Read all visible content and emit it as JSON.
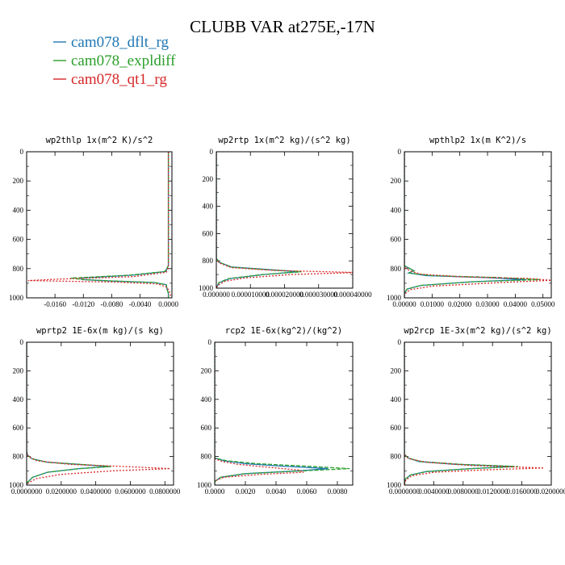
{
  "title": "CLUBB VAR at275E,-17N",
  "legend": [
    {
      "label": "cam078_dflt_rg",
      "color": "#1f77b4"
    },
    {
      "label": "cam078_expldiff",
      "color": "#2ca02c"
    },
    {
      "label": "cam078_qt1_rg",
      "color": "#d62728"
    }
  ],
  "chart_data": [
    {
      "type": "line",
      "title": "wp2thlp  1x(m^2 K)/s^2",
      "xlim": [
        -0.02,
        0.0005
      ],
      "ylim": [
        0,
        1000
      ],
      "yticks": [
        0,
        200,
        400,
        600,
        800,
        1000
      ],
      "ytick_labels": [
        "0",
        "200",
        "400",
        "600",
        "800",
        "1000"
      ],
      "xticks": [
        -0.016,
        -0.012,
        -0.008,
        -0.004,
        0.0
      ],
      "xtick_labels": [
        "-0.0160",
        "-0.0120",
        "-0.0080",
        "-0.0040",
        "0.0000"
      ],
      "series": [
        {
          "name": "cam078_dflt_rg",
          "y": [
            0,
            780,
            820,
            845,
            865,
            875,
            885,
            895,
            910,
            940,
            970,
            1000
          ],
          "x": [
            0.0,
            0.0,
            -0.0004,
            -0.005,
            -0.0125,
            -0.0122,
            -0.008,
            -0.002,
            -0.0003,
            -0.0002,
            0.0,
            0.0
          ]
        },
        {
          "name": "cam078_expldiff",
          "y": [
            0,
            780,
            820,
            845,
            865,
            875,
            885,
            895,
            910,
            940,
            970,
            1000
          ],
          "x": [
            0.0,
            0.0,
            -0.0005,
            -0.0055,
            -0.0138,
            -0.012,
            -0.0075,
            -0.002,
            -0.0003,
            -0.0002,
            0.0,
            0.0
          ]
        },
        {
          "name": "cam078_qt1_rg",
          "y": [
            0,
            790,
            825,
            855,
            872,
            882,
            892,
            905,
            925,
            945,
            975,
            1000
          ],
          "x": [
            0.0,
            0.0,
            -0.0003,
            -0.005,
            -0.0155,
            -0.0198,
            -0.0075,
            -0.0015,
            -0.0003,
            0.0,
            0.0003,
            0.0003
          ]
        }
      ]
    },
    {
      "type": "line",
      "title": "wp2rtp  1x(m^2 kg)/(s^2 kg)",
      "xlim": [
        0.0,
        4e-05
      ],
      "ylim": [
        0,
        1000
      ],
      "yticks": [
        0,
        200,
        400,
        600,
        800,
        1000
      ],
      "ytick_labels": [
        "0",
        "200",
        "400",
        "600",
        "800",
        "1000"
      ],
      "xticks": [
        0.0,
        1e-05,
        2e-05,
        3e-05,
        4e-05
      ],
      "xtick_labels": [
        "0.000000",
        "0.000010000",
        "0.000020000",
        "0.000030000",
        "0.000040000"
      ],
      "series": [
        {
          "name": "cam078_dflt_rg",
          "y": [
            0,
            780,
            810,
            845,
            865,
            880,
            900,
            930,
            960,
            1000
          ],
          "x": [
            0.0,
            0.0,
            8e-07,
            4.5e-06,
            1.6e-05,
            2.4e-05,
            1.4e-05,
            4e-06,
            8e-07,
            0.0
          ]
        },
        {
          "name": "cam078_expldiff",
          "y": [
            0,
            780,
            810,
            845,
            865,
            880,
            900,
            930,
            960,
            1000
          ],
          "x": [
            0.0,
            0.0,
            8e-07,
            4.2e-06,
            1.5e-05,
            2.5e-05,
            1.35e-05,
            3.5e-06,
            7e-07,
            0.0
          ]
        },
        {
          "name": "cam078_qt1_rg",
          "y": [
            0,
            785,
            815,
            850,
            870,
            885,
            900,
            925,
            950,
            980,
            1000
          ],
          "x": [
            0.0,
            0.0,
            8e-07,
            4.5e-06,
            1.7e-05,
            4.1e-05,
            2.2e-05,
            8.5e-06,
            2.5e-06,
            4e-07,
            0.0
          ]
        }
      ]
    },
    {
      "type": "line",
      "title": "wpthlp2  1x(m K^2)/s",
      "xlim": [
        0.0,
        0.053
      ],
      "ylim": [
        0,
        1000
      ],
      "yticks": [
        0,
        200,
        400,
        600,
        800,
        1000
      ],
      "ytick_labels": [
        "0",
        "200",
        "400",
        "600",
        "800",
        "1000"
      ],
      "xticks": [
        0.0,
        0.01,
        0.02,
        0.03,
        0.04,
        0.05
      ],
      "xtick_labels": [
        "0.00000",
        "0.01000",
        "0.02000",
        "0.03000",
        "0.04000",
        "0.05000"
      ],
      "series": [
        {
          "name": "cam078_dflt_rg",
          "y": [
            0,
            780,
            800,
            815,
            830,
            848,
            862,
            875,
            890,
            915,
            940,
            970,
            1000
          ],
          "x": [
            0.0,
            0.0,
            0.002,
            0.0035,
            0.0015,
            0.008,
            0.03,
            0.044,
            0.024,
            0.006,
            0.001,
            0.0,
            0.0
          ]
        },
        {
          "name": "cam078_expldiff",
          "y": [
            0,
            780,
            800,
            815,
            830,
            848,
            862,
            875,
            890,
            915,
            940,
            970,
            1000
          ],
          "x": [
            0.0,
            0.0,
            0.002,
            0.0035,
            0.0015,
            0.01,
            0.035,
            0.049,
            0.025,
            0.006,
            0.001,
            0.0,
            0.0
          ]
        },
        {
          "name": "cam078_qt1_rg",
          "y": [
            0,
            785,
            805,
            822,
            838,
            855,
            868,
            880,
            895,
            920,
            945,
            975,
            1000
          ],
          "x": [
            0.0,
            0.0,
            0.001,
            0.003,
            0.006,
            0.02,
            0.045,
            0.053,
            0.035,
            0.01,
            0.002,
            0.0,
            0.0
          ]
        }
      ]
    },
    {
      "type": "line",
      "title": "wprtp2  1E-6x(m kg)/(s kg)",
      "xlim": [
        0.0,
        0.085
      ],
      "ylim": [
        0,
        1000
      ],
      "yticks": [
        0,
        200,
        400,
        600,
        800,
        1000
      ],
      "ytick_labels": [
        "0",
        "200",
        "400",
        "600",
        "800",
        "1000"
      ],
      "xticks": [
        0.0,
        0.02,
        0.04,
        0.06,
        0.08
      ],
      "xtick_labels": [
        "0.0000000",
        "0.0200000",
        "0.0400000",
        "0.0600000",
        "0.0800000"
      ],
      "series": [
        {
          "name": "cam078_dflt_rg",
          "y": [
            0,
            765,
            790,
            815,
            840,
            855,
            870,
            885,
            910,
            945,
            980,
            1000
          ],
          "x": [
            0.0,
            0.0,
            0.0005,
            0.003,
            0.012,
            0.03,
            0.048,
            0.03,
            0.012,
            0.0035,
            0.0005,
            0.0
          ]
        },
        {
          "name": "cam078_expldiff",
          "y": [
            0,
            765,
            790,
            815,
            840,
            855,
            870,
            885,
            910,
            945,
            980,
            1000
          ],
          "x": [
            0.0,
            0.0,
            0.0005,
            0.003,
            0.012,
            0.031,
            0.049,
            0.031,
            0.012,
            0.0035,
            0.0005,
            0.0
          ]
        },
        {
          "name": "cam078_qt1_rg",
          "y": [
            0,
            770,
            800,
            830,
            855,
            872,
            885,
            900,
            925,
            955,
            985,
            1000
          ],
          "x": [
            0.0,
            0.0,
            0.001,
            0.006,
            0.025,
            0.06,
            0.083,
            0.05,
            0.02,
            0.0055,
            0.001,
            0.0
          ]
        }
      ]
    },
    {
      "type": "line",
      "title": "rcp2  1E-6x(kg^2)/(kg^2)",
      "xlim": [
        0.0,
        0.009
      ],
      "ylim": [
        0,
        1000
      ],
      "yticks": [
        0,
        200,
        400,
        600,
        800,
        1000
      ],
      "ytick_labels": [
        "0",
        "200",
        "400",
        "600",
        "800",
        "1000"
      ],
      "xticks": [
        0.0,
        0.002,
        0.004,
        0.006,
        0.008
      ],
      "xtick_labels": [
        "0.0000",
        "0.0020",
        "0.0040",
        "0.0060",
        "0.0080"
      ],
      "series": [
        {
          "name": "cam078_dflt_rg",
          "y": [
            0,
            810,
            830,
            850,
            868,
            885,
            900,
            920,
            945,
            975,
            1000
          ],
          "x": [
            0.0,
            0.0,
            0.0006,
            0.002,
            0.0045,
            0.0074,
            0.0055,
            0.002,
            0.0004,
            0.0,
            0.0
          ]
        },
        {
          "name": "cam078_expldiff",
          "y": [
            0,
            810,
            830,
            850,
            868,
            885,
            900,
            920,
            945,
            975,
            1000
          ],
          "x": [
            0.0,
            0.0,
            0.0008,
            0.0028,
            0.006,
            0.0088,
            0.0058,
            0.002,
            0.0004,
            0.0,
            0.0
          ]
        },
        {
          "name": "cam078_qt1_rg",
          "y": [
            0,
            815,
            835,
            855,
            875,
            895,
            910,
            925,
            945,
            970,
            1000
          ],
          "x": [
            0.0,
            0.0,
            0.0005,
            0.0015,
            0.0035,
            0.0055,
            0.0058,
            0.003,
            0.0006,
            0.0,
            0.0
          ]
        }
      ]
    },
    {
      "type": "line",
      "title": "wp2rcp  1E-3x(m^2 kg)/(s^2 kg)",
      "xlim": [
        0.0,
        0.02
      ],
      "ylim": [
        0,
        1000
      ],
      "yticks": [
        0,
        200,
        400,
        600,
        800,
        1000
      ],
      "ytick_labels": [
        "0",
        "200",
        "400",
        "600",
        "800",
        "1000"
      ],
      "xticks": [
        0.0,
        0.004,
        0.008,
        0.012,
        0.016,
        0.02
      ],
      "xtick_labels": [
        "0.0000000",
        "0.0040000",
        "0.0080000",
        "0.0120000",
        "0.0160000",
        "0.0200000"
      ],
      "series": [
        {
          "name": "cam078_dflt_rg",
          "y": [
            0,
            785,
            810,
            835,
            855,
            870,
            885,
            905,
            930,
            960,
            1000
          ],
          "x": [
            0.0,
            0.0,
            0.0005,
            0.002,
            0.007,
            0.0148,
            0.009,
            0.003,
            0.0008,
            0.0001,
            0.0
          ]
        },
        {
          "name": "cam078_expldiff",
          "y": [
            0,
            785,
            810,
            835,
            855,
            870,
            885,
            905,
            930,
            960,
            1000
          ],
          "x": [
            0.0,
            0.0,
            0.0005,
            0.0022,
            0.0078,
            0.0155,
            0.0092,
            0.003,
            0.0008,
            0.0001,
            0.0
          ]
        },
        {
          "name": "cam078_qt1_rg",
          "y": [
            0,
            790,
            815,
            840,
            862,
            880,
            893,
            910,
            935,
            965,
            1000
          ],
          "x": [
            0.0,
            0.0,
            0.0006,
            0.003,
            0.009,
            0.019,
            0.011,
            0.004,
            0.001,
            0.0002,
            0.0
          ]
        }
      ]
    }
  ]
}
